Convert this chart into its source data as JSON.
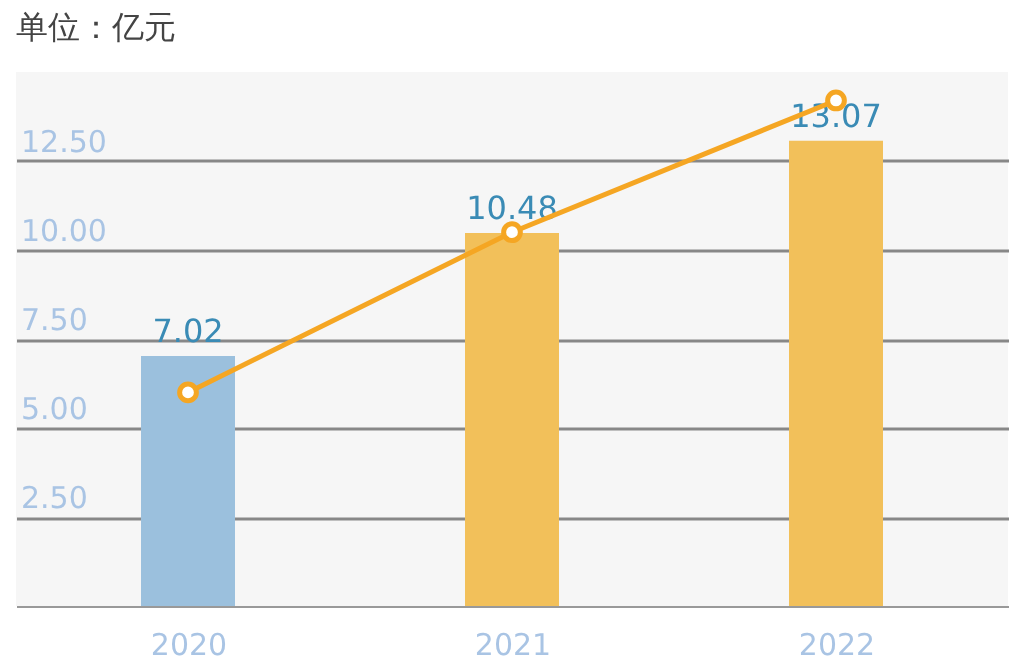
{
  "chart_data": {
    "type": "bar",
    "title": "单位：亿元",
    "categories": [
      "2020",
      "2021",
      "2022"
    ],
    "series": [
      {
        "colors": [
          "#9bc0dd",
          "#f2c05a",
          "#f2c05a"
        ],
        "values": [
          7.02,
          10.48,
          13.07
        ],
        "value_labels": [
          "7.02",
          "10.48",
          "13.07"
        ]
      },
      {
        "type": "line",
        "color": "#f5a623",
        "values": [
          6.0,
          10.5,
          14.2
        ],
        "marker": "circle"
      }
    ],
    "ylim": [
      0,
      15
    ],
    "yticks": [
      {
        "value": 2.5,
        "label": "2.50"
      },
      {
        "value": 5,
        "label": "5.00"
      },
      {
        "value": 7.5,
        "label": "7.50"
      },
      {
        "value": 10,
        "label": "10.00"
      },
      {
        "value": 12.5,
        "label": "12.50"
      }
    ],
    "grid": "y"
  }
}
